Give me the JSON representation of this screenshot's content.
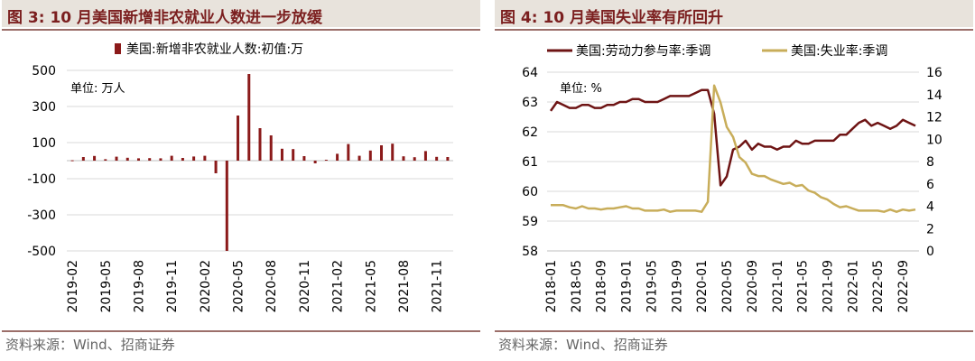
{
  "colors": {
    "accent": "#7b1f1f",
    "bar": "#8b1a1a",
    "lfpr": "#6e1414",
    "unemp": "#c8ad5a",
    "grid": "#d9d9d9",
    "title_bg": "#e8e3dc"
  },
  "left": {
    "title": "图 3:  10 月美国新增非农就业人数进一步放缓",
    "source": "资料来源：Wind、招商证券",
    "chart_data": {
      "type": "bar",
      "title": "",
      "legend": [
        "美国:新增非农就业人数:初值:万"
      ],
      "unit_label": "单位:  万人",
      "ylim": [
        -500,
        500
      ],
      "yticks": [
        -500,
        -300,
        -100,
        100,
        300,
        500
      ],
      "tick_labels_x": [
        "2019-02",
        "2019-05",
        "2019-08",
        "2019-11",
        "2020-02",
        "2020-05",
        "2020-08",
        "2020-11",
        "2021-02",
        "2021-05",
        "2021-08",
        "2021-11"
      ],
      "categories": [
        "2019-02",
        "2019-03",
        "2019-04",
        "2019-05",
        "2019-06",
        "2019-07",
        "2019-08",
        "2019-09",
        "2019-10",
        "2019-11",
        "2019-12",
        "2020-01",
        "2020-02",
        "2020-03",
        "2020-04",
        "2020-05",
        "2020-06",
        "2020-07",
        "2020-08",
        "2020-09",
        "2020-10",
        "2020-11",
        "2020-12",
        "2021-01",
        "2021-02",
        "2021-03",
        "2021-04",
        "2021-05",
        "2021-06",
        "2021-07",
        "2021-08",
        "2021-09",
        "2021-10",
        "2021-11",
        "2021-12"
      ],
      "values": [
        2,
        20,
        26,
        8,
        22,
        16,
        13,
        14,
        13,
        27,
        15,
        23,
        27,
        -70,
        -500,
        250,
        480,
        180,
        140,
        66,
        64,
        25,
        -15,
        5,
        38,
        92,
        27,
        56,
        85,
        94,
        24,
        19,
        53,
        21,
        20
      ]
    }
  },
  "right": {
    "title": "图 4:  10 月美国失业率有所回升",
    "source": "资料来源：Wind、招商证券",
    "chart_data": {
      "type": "line",
      "legend": [
        "美国:劳动力参与率:季调",
        "美国:失业率:季调"
      ],
      "unit_label": "单位:  %",
      "ylim_left": [
        58,
        64
      ],
      "yticks_left": [
        58,
        59,
        60,
        61,
        62,
        63,
        64
      ],
      "ylim_right": [
        0,
        16
      ],
      "yticks_right": [
        0,
        2,
        4,
        6,
        8,
        10,
        12,
        14,
        16
      ],
      "tick_labels_x": [
        "2018-01",
        "2018-05",
        "2018-09",
        "2019-01",
        "2019-05",
        "2019-09",
        "2020-01",
        "2020-05",
        "2020-09",
        "2021-01",
        "2021-05",
        "2021-09",
        "2022-01",
        "2022-05",
        "2022-09"
      ],
      "x_start": "2018-01",
      "series": [
        {
          "name": "美国:劳动力参与率:季调",
          "axis": "left",
          "values": [
            62.7,
            63.0,
            62.9,
            62.8,
            62.8,
            62.9,
            62.9,
            62.8,
            62.8,
            62.9,
            62.9,
            63.0,
            63.0,
            63.1,
            63.1,
            63.0,
            63.0,
            63.0,
            63.1,
            63.2,
            63.2,
            63.2,
            63.2,
            63.3,
            63.4,
            63.4,
            62.6,
            60.2,
            60.5,
            61.4,
            61.5,
            61.7,
            61.4,
            61.6,
            61.5,
            61.5,
            61.4,
            61.5,
            61.5,
            61.7,
            61.6,
            61.6,
            61.7,
            61.7,
            61.7,
            61.7,
            61.9,
            61.9,
            62.1,
            62.3,
            62.4,
            62.2,
            62.3,
            62.2,
            62.1,
            62.2,
            62.4,
            62.3,
            62.2
          ]
        },
        {
          "name": "美国:失业率:季调",
          "axis": "right",
          "values": [
            4.1,
            4.1,
            4.1,
            3.9,
            3.8,
            4.0,
            3.8,
            3.8,
            3.7,
            3.8,
            3.8,
            3.9,
            4.0,
            3.8,
            3.8,
            3.6,
            3.6,
            3.6,
            3.7,
            3.5,
            3.6,
            3.6,
            3.6,
            3.6,
            3.5,
            4.4,
            14.8,
            13.3,
            11.1,
            10.2,
            8.4,
            7.9,
            6.9,
            6.7,
            6.7,
            6.4,
            6.2,
            6.0,
            6.1,
            5.8,
            5.9,
            5.4,
            5.2,
            4.8,
            4.6,
            4.2,
            3.9,
            4.0,
            3.8,
            3.6,
            3.6,
            3.6,
            3.6,
            3.5,
            3.7,
            3.5,
            3.7,
            3.6,
            3.7
          ]
        }
      ]
    }
  }
}
